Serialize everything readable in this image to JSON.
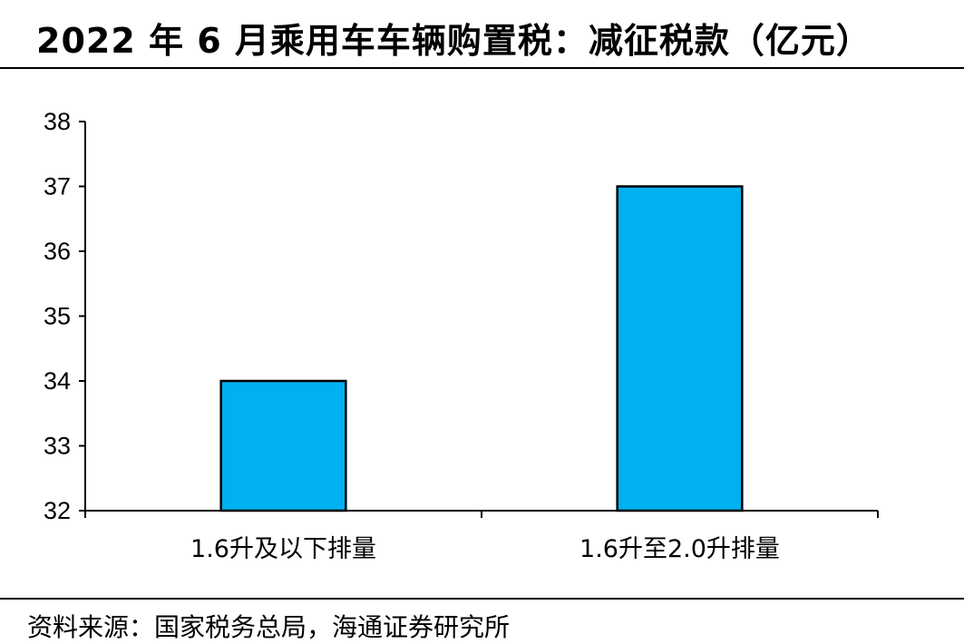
{
  "title": "2022 年 6 月乘用车车辆购置税：减征税款（亿元）",
  "source": "资料来源：国家税务总局，海通证券研究所",
  "chart_data": {
    "type": "bar",
    "title": "2022 年 6 月乘用车车辆购置税：减征税款（亿元）",
    "categories": [
      "1.6升及以下排量",
      "1.6升至2.0升排量"
    ],
    "values": [
      34,
      37
    ],
    "xlabel": "",
    "ylabel": "",
    "ylim": [
      32,
      38
    ],
    "yticks": [
      32,
      33,
      34,
      35,
      36,
      37,
      38
    ],
    "grid": false,
    "legend": "none",
    "bar_color": "#00B0F0",
    "bar_edge_color": "#000000"
  }
}
